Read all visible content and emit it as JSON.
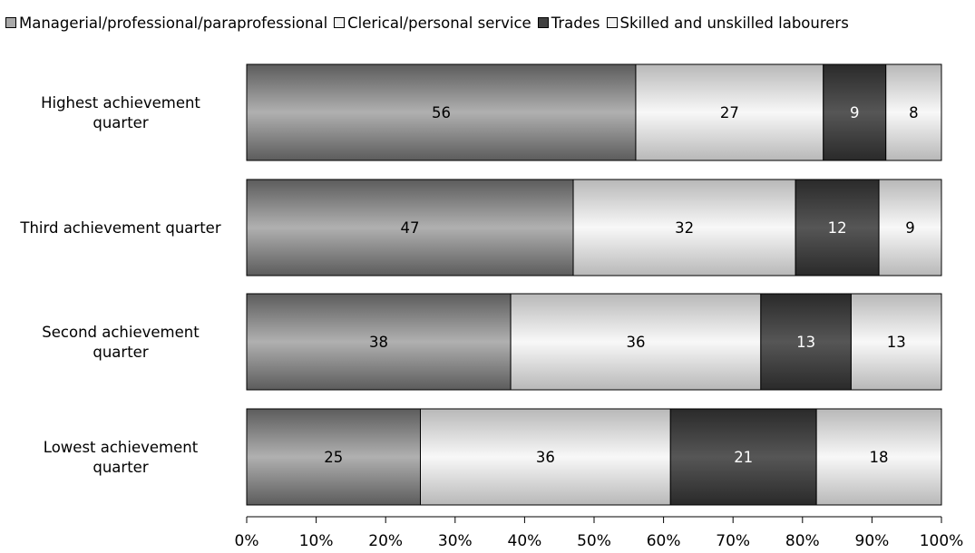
{
  "chart_data": {
    "type": "bar",
    "orientation": "horizontal",
    "stacked": "percent",
    "categories": [
      "Highest achievement quarter",
      "Third achievement quarter",
      "Second achievement quarter",
      "Lowest achievement quarter"
    ],
    "category_label_lines": [
      [
        "Highest achievement",
        "quarter"
      ],
      [
        "Third achievement quarter"
      ],
      [
        "Second achievement",
        "quarter"
      ],
      [
        "Lowest achievement",
        "quarter"
      ]
    ],
    "series": [
      {
        "name": "Managerial/professional/paraprofessional",
        "values": [
          56,
          47,
          38,
          25
        ],
        "color": "#a9a9a9",
        "label_color": "#000000"
      },
      {
        "name": "Clerical/personal service",
        "values": [
          27,
          32,
          36,
          36
        ],
        "color": "#f2f2f2",
        "label_color": "#000000"
      },
      {
        "name": "Trades",
        "values": [
          9,
          12,
          13,
          21
        ],
        "color": "#404040",
        "label_color": "#ffffff"
      },
      {
        "name": "Skilled and unskilled labourers",
        "values": [
          8,
          9,
          13,
          18
        ],
        "color": "#f2f2f2",
        "label_color": "#000000"
      }
    ],
    "x_ticks": [
      "0%",
      "10%",
      "20%",
      "30%",
      "40%",
      "50%",
      "60%",
      "70%",
      "80%",
      "90%",
      "100%"
    ],
    "xlim": [
      0,
      100
    ],
    "legend_position": "top",
    "grid": false
  }
}
